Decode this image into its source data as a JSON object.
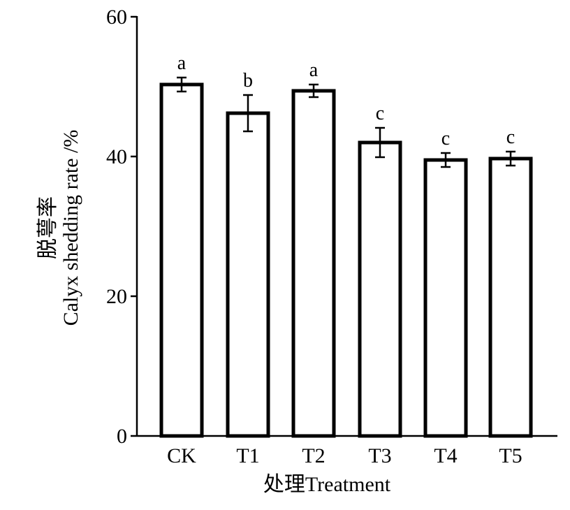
{
  "chart_data": {
    "type": "bar",
    "categories": [
      "CK",
      "T1",
      "T2",
      "T3",
      "T4",
      "T5"
    ],
    "values": [
      50.3,
      46.2,
      49.4,
      42.0,
      39.5,
      39.7
    ],
    "errors": [
      1.0,
      2.6,
      0.9,
      2.1,
      1.0,
      1.0
    ],
    "significance": [
      "a",
      "b",
      "a",
      "c",
      "c",
      "c"
    ],
    "ylim": [
      0,
      60
    ],
    "yticks": [
      0,
      20,
      40,
      60
    ],
    "xlabel": "处理Treatment",
    "ylabel_zh": "脱萼率",
    "ylabel_en": "Calyx shedding rate /%",
    "grid": false,
    "bar_fill": "#ffffff",
    "bar_stroke": "#000000"
  }
}
